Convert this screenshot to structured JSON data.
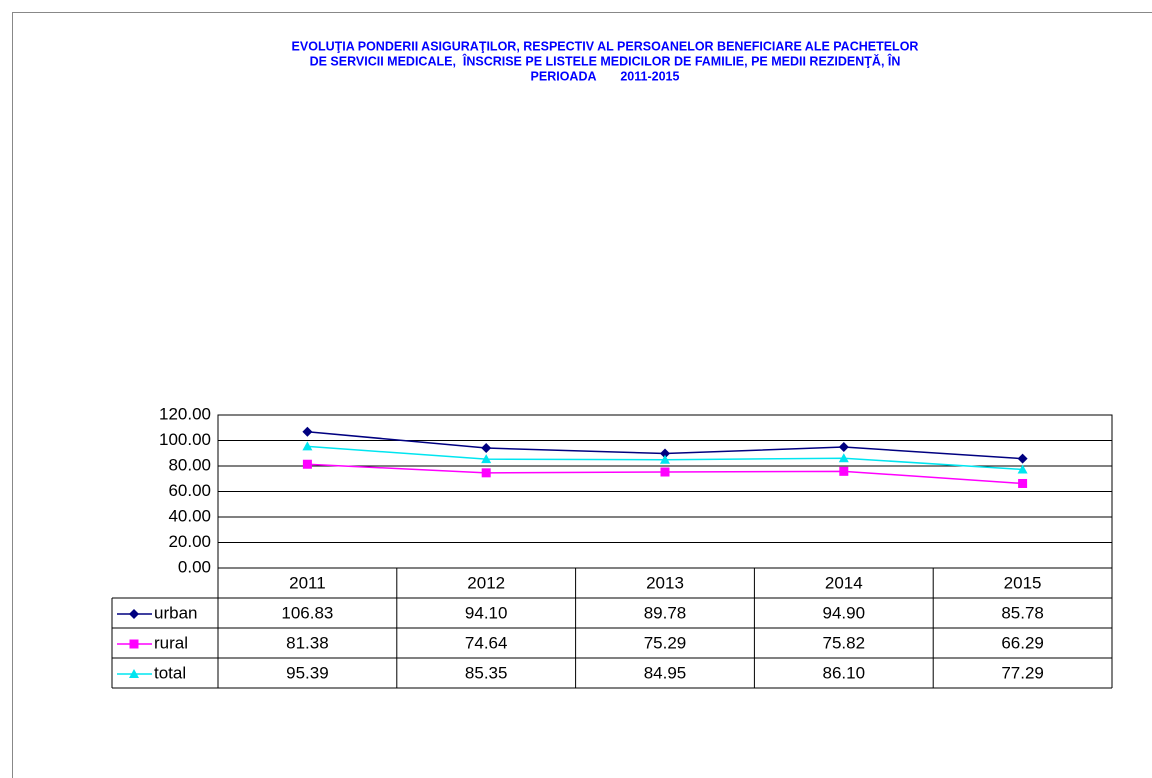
{
  "chart_data": {
    "type": "line",
    "title": [
      "EVOLUŢIA PONDERII ASIGURAŢILOR, RESPECTIV AL PERSOANELOR BENEFICIARE ALE PACHETELOR",
      "DE SERVICII MEDICALE,  ÎNSCRISE PE LISTELE MEDICILOR DE FAMILIE, PE MEDII REZIDENŢĂ, ÎN",
      "PERIOADA       2011-2015"
    ],
    "categories": [
      "2011",
      "2012",
      "2013",
      "2014",
      "2015"
    ],
    "series": [
      {
        "name": "urban",
        "color": "#000080",
        "marker": "diamond",
        "values": [
          106.83,
          94.1,
          89.78,
          94.9,
          85.78
        ],
        "value_labels": [
          "106.83",
          "94.10",
          "89.78",
          "94.90",
          "85.78"
        ]
      },
      {
        "name": "rural",
        "color": "#ff00ff",
        "marker": "square",
        "values": [
          81.38,
          74.64,
          75.29,
          75.82,
          66.29
        ],
        "value_labels": [
          "81.38",
          "74.64",
          "75.29",
          "75.82",
          "66.29"
        ]
      },
      {
        "name": "total",
        "color": "#00e5f0",
        "marker": "triangle",
        "values": [
          95.39,
          85.35,
          84.95,
          86.1,
          77.29
        ],
        "value_labels": [
          "95.39",
          "85.35",
          "84.95",
          "86.10",
          "77.29"
        ]
      }
    ],
    "ylim": [
      0,
      120
    ],
    "yticks": [
      {
        "value": 0,
        "label": "0.00"
      },
      {
        "value": 20,
        "label": "20.00"
      },
      {
        "value": 40,
        "label": "40.00"
      },
      {
        "value": 60,
        "label": "60.00"
      },
      {
        "value": 80,
        "label": "80.00"
      },
      {
        "value": 100,
        "label": "100.00"
      },
      {
        "value": 120,
        "label": "120.00"
      }
    ],
    "grid": true
  }
}
